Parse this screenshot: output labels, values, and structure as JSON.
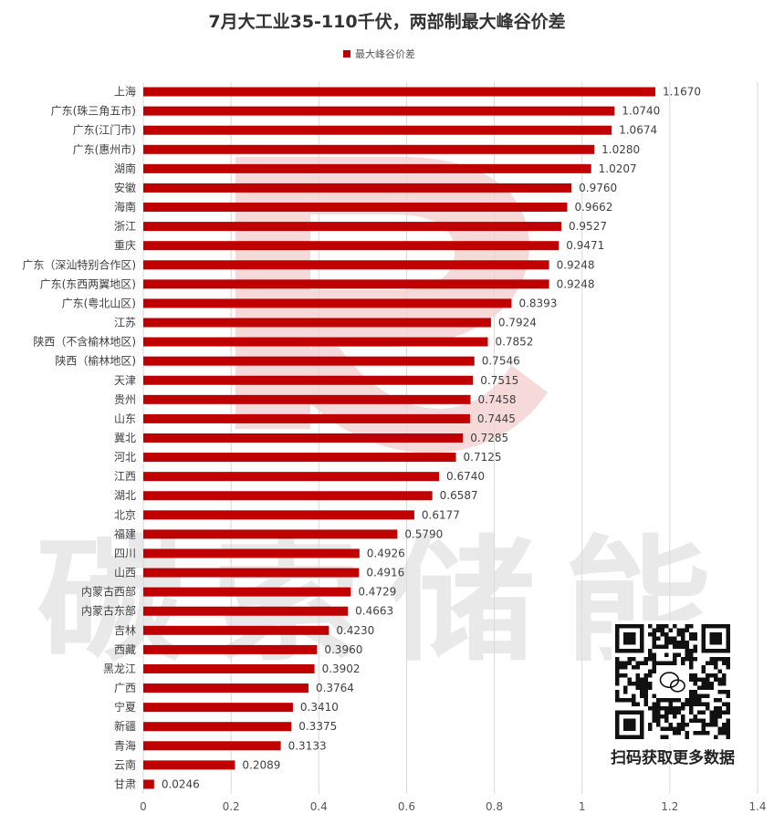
{
  "chart_data": {
    "type": "bar",
    "orientation": "horizontal",
    "title": "7月大工业35-110千伏，两部制最大峰谷价差",
    "categories": [
      "上海",
      "广东(珠三角五市)",
      "广东(江门市)",
      "广东(惠州市)",
      "湖南",
      "安徽",
      "海南",
      "浙江",
      "重庆",
      "广东（深汕特别合作区)",
      "广东(东西两翼地区)",
      "广东(粤北山区)",
      "江苏",
      "陕西（不含榆林地区)",
      "陕西（榆林地区)",
      "天津",
      "贵州",
      "山东",
      "冀北",
      "河北",
      "江西",
      "湖北",
      "北京",
      "福建",
      "四川",
      "山西",
      "内蒙古西部",
      "内蒙古东部",
      "吉林",
      "西藏",
      "黑龙江",
      "广西",
      "宁夏",
      "新疆",
      "青海",
      "云南",
      "甘肃"
    ],
    "series": [
      {
        "name": "最大峰谷价差",
        "values": [
          1.167,
          1.074,
          1.0674,
          1.028,
          1.0207,
          0.976,
          0.9662,
          0.9527,
          0.9471,
          0.9248,
          0.9248,
          0.8393,
          0.7924,
          0.7852,
          0.7546,
          0.7515,
          0.7458,
          0.7445,
          0.7285,
          0.7125,
          0.674,
          0.6587,
          0.6177,
          0.579,
          0.4926,
          0.4916,
          0.4729,
          0.4663,
          0.423,
          0.396,
          0.3902,
          0.3764,
          0.341,
          0.3375,
          0.3133,
          0.2089,
          0.0246
        ],
        "labels": [
          "1.1670",
          "1.0740",
          "1.0674",
          "1.0280",
          "1.0207",
          "0.9760",
          "0.9662",
          "0.9527",
          "0.9471",
          "0.9248",
          "0.9248",
          "0.8393",
          "0.7924",
          "0.7852",
          "0.7546",
          "0.7515",
          "0.7458",
          "0.7445",
          "0.7285",
          "0.7125",
          "0.6740",
          "0.6587",
          "0.6177",
          "0.5790",
          "0.4926",
          "0.4916",
          "0.4729",
          "0.4663",
          "0.4230",
          "0.3960",
          "0.3902",
          "0.3764",
          "0.3410",
          "0.3375",
          "0.3133",
          "0.2089",
          "0.0246"
        ]
      }
    ],
    "xlim": [
      0,
      1.4
    ],
    "xticks": [
      0,
      0.2,
      0.4,
      0.6,
      0.8,
      1,
      1.2,
      1.4
    ],
    "xtick_labels": [
      "0",
      "0.2",
      "0.4",
      "0.6",
      "0.8",
      "1",
      "1.2",
      "1.4"
    ],
    "grid": "vertical",
    "legend_position": "top"
  },
  "colors": {
    "bar": "#c00000",
    "watermark": "#e9e9e9",
    "watermark_logo": "#f6dada"
  },
  "watermark": {
    "text": "碳索储能"
  },
  "qr": {
    "caption": "扫码获取更多数据",
    "icon": "wechat-qr-icon"
  }
}
